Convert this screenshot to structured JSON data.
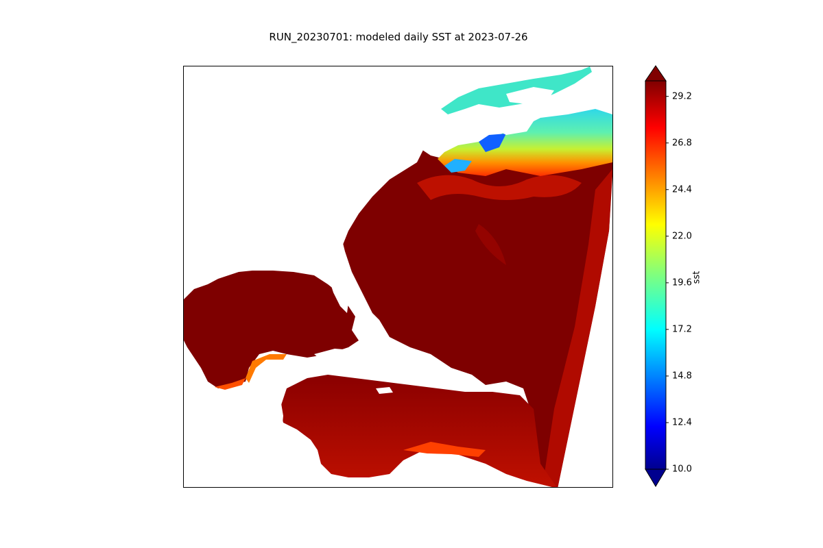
{
  "title": "RUN_20230701: modeled daily SST at 2023-07-26",
  "colorbar": {
    "label": "sst",
    "min": 10.0,
    "max": 30.0,
    "ticks": [
      "10.0",
      "12.4",
      "14.8",
      "17.2",
      "19.6",
      "22.0",
      "24.4",
      "26.8",
      "29.2"
    ],
    "tick_values": [
      10.0,
      12.4,
      14.8,
      17.2,
      19.6,
      22.0,
      24.4,
      26.8,
      29.2
    ],
    "colormap": "jet",
    "extend": "both"
  },
  "colors": {
    "warm_core": "#800000",
    "warm": "#b30000",
    "orange": "#ff4a00",
    "yellow": "#ffe600",
    "cyan": "#22e0e0",
    "blue": "#0a3cff"
  }
}
